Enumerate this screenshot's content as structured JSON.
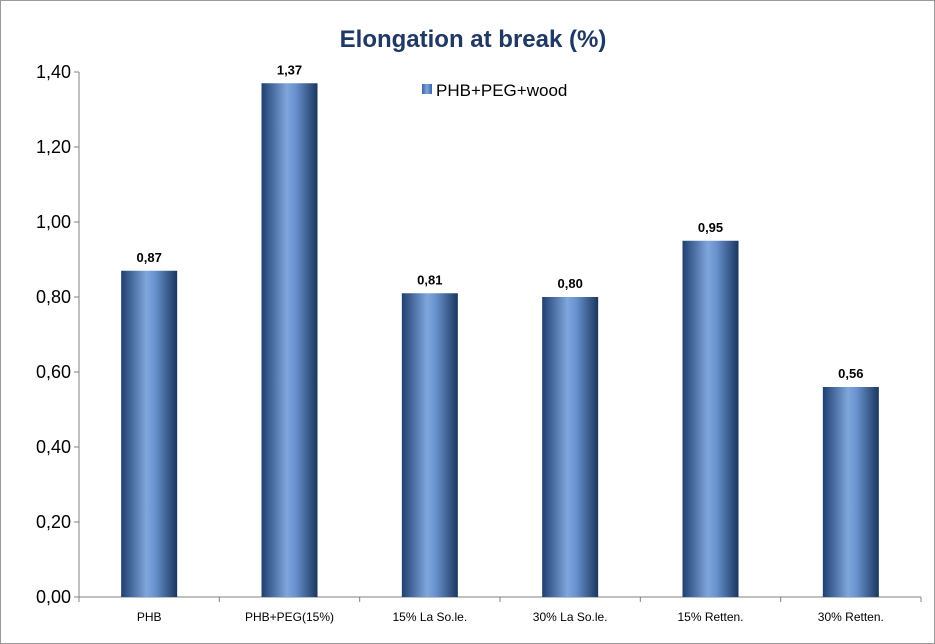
{
  "chart_data": {
    "type": "bar",
    "title": "Elongation at break (%)",
    "xlabel": "",
    "ylabel": "",
    "categories": [
      "PHB",
      "PHB+PEG(15%)",
      "15% La So.le.",
      "30% La So.le.",
      "15% Retten.",
      "30% Retten."
    ],
    "series": [
      {
        "name": "PHB+PEG+wood",
        "values": [
          0.87,
          1.37,
          0.81,
          0.8,
          0.95,
          0.56
        ],
        "value_labels": [
          "0,87",
          "1,37",
          "0,81",
          "0,80",
          "0,95",
          "0,56"
        ],
        "color": "#4f81bd"
      }
    ],
    "ylim": [
      0,
      1.4
    ],
    "yticks": [
      0,
      0.2,
      0.4,
      0.6,
      0.8,
      1.0,
      1.2,
      1.4
    ],
    "ytick_labels": [
      "0,00",
      "0,20",
      "0,40",
      "0,60",
      "0,80",
      "1,00",
      "1,20",
      "1,40"
    ],
    "grid": false,
    "legend_position": "top-center"
  }
}
